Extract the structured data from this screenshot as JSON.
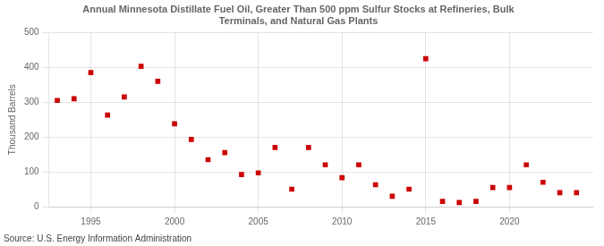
{
  "chart_data": {
    "type": "scatter",
    "title": "Annual Minnesota Distillate Fuel Oil, Greater Than 500 ppm Sulfur Stocks at Refineries, Bulk\nTerminals, and Natural Gas Plants",
    "ylabel": "Thousand Barrels",
    "source": "Source: U.S. Energy Information Administration",
    "x": [
      1993,
      1994,
      1995,
      1996,
      1997,
      1998,
      1999,
      2000,
      2001,
      2002,
      2003,
      2004,
      2005,
      2006,
      2007,
      2008,
      2009,
      2010,
      2011,
      2012,
      2013,
      2014,
      2015,
      2016,
      2017,
      2018,
      2019,
      2020,
      2021,
      2022,
      2023,
      2024
    ],
    "values": [
      305,
      310,
      385,
      263,
      315,
      403,
      360,
      238,
      193,
      135,
      155,
      92,
      97,
      170,
      50,
      170,
      120,
      83,
      120,
      63,
      30,
      50,
      425,
      15,
      12,
      15,
      55,
      55,
      120,
      70,
      40,
      40
    ],
    "color": "#cc0000",
    "marker": "square",
    "xlim": [
      1992.5,
      2025
    ],
    "ylim": [
      0,
      500
    ],
    "xticks": [
      1995,
      2000,
      2005,
      2010,
      2015,
      2020
    ],
    "yticks": [
      0,
      100,
      200,
      300,
      400,
      500
    ],
    "grid": true
  }
}
